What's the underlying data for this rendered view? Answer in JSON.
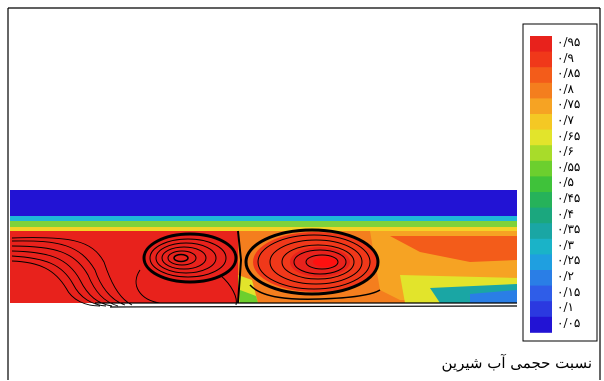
{
  "legend": {
    "labels": [
      "۰/۹۵",
      "۰/۹",
      "۰/۸۵",
      "۰/۸",
      "۰/۷۵",
      "۰/۷",
      "۰/۶۵",
      "۰/۶",
      "۰/۵۵",
      "۰/۵",
      "۰/۴۵",
      "۰/۴",
      "۰/۳۵",
      "۰/۳",
      "۰/۲۵",
      "۰/۲",
      "۰/۱۵",
      "۰/۱",
      "۰/۰۵"
    ],
    "colors": [
      "#e8221c",
      "#f0381a",
      "#f35c1a",
      "#f47e1e",
      "#f6a323",
      "#f4c824",
      "#e2e42b",
      "#a8dc2a",
      "#6ccf2e",
      "#3fc23a",
      "#26b25a",
      "#1ba77e",
      "#1aa6a4",
      "#1ab3c8",
      "#1f9fe0",
      "#2a7ee6",
      "#2f5de8",
      "#2b39e0",
      "#2213d4"
    ]
  },
  "caption": "نسبت حجمی آب شیرین"
}
